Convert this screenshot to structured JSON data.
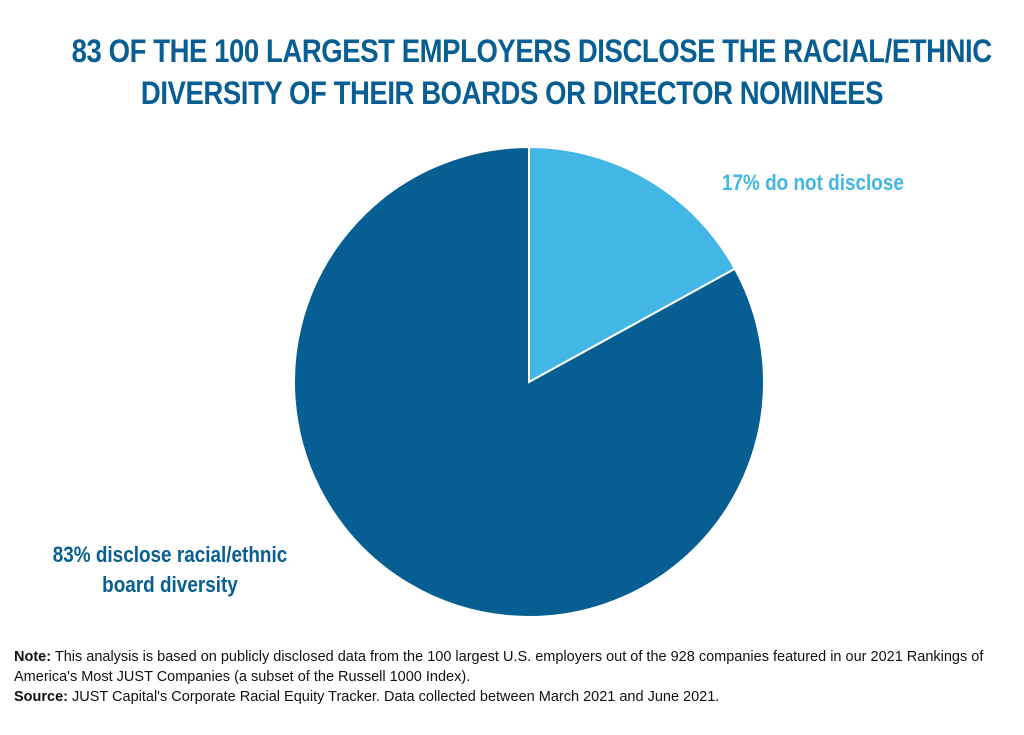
{
  "title": {
    "line1": "83 OF THE 100 LARGEST EMPLOYERS DISCLOSE THE RACIAL/ETHNIC",
    "line2": "DIVERSITY OF THEIR BOARDS OR DIRECTOR NOMINEES"
  },
  "chart_data": {
    "type": "pie",
    "title": "83 OF THE 100 LARGEST EMPLOYERS DISCLOSE THE RACIAL/ETHNIC DIVERSITY OF THEIR BOARDS OR DIRECTOR NOMINEES",
    "slices": [
      {
        "label": "17% do not disclose",
        "value": 17,
        "color": "#42B6E4"
      },
      {
        "label": "83% disclose racial/ethnic board diversity",
        "value": 83,
        "color": "#075E92"
      }
    ]
  },
  "footnote": {
    "note_label": "Note:",
    "note_text": "This analysis is based on publicly disclosed data from the 100 largest U.S. employers out of the 928 companies featured in our 2021 Rankings of America's Most JUST Companies (a subset of the Russell 1000 Index).",
    "source_label": "Source:",
    "source_text": "JUST Capital's Corporate Racial Equity Tracker. Data collected between March 2021 and June 2021."
  }
}
